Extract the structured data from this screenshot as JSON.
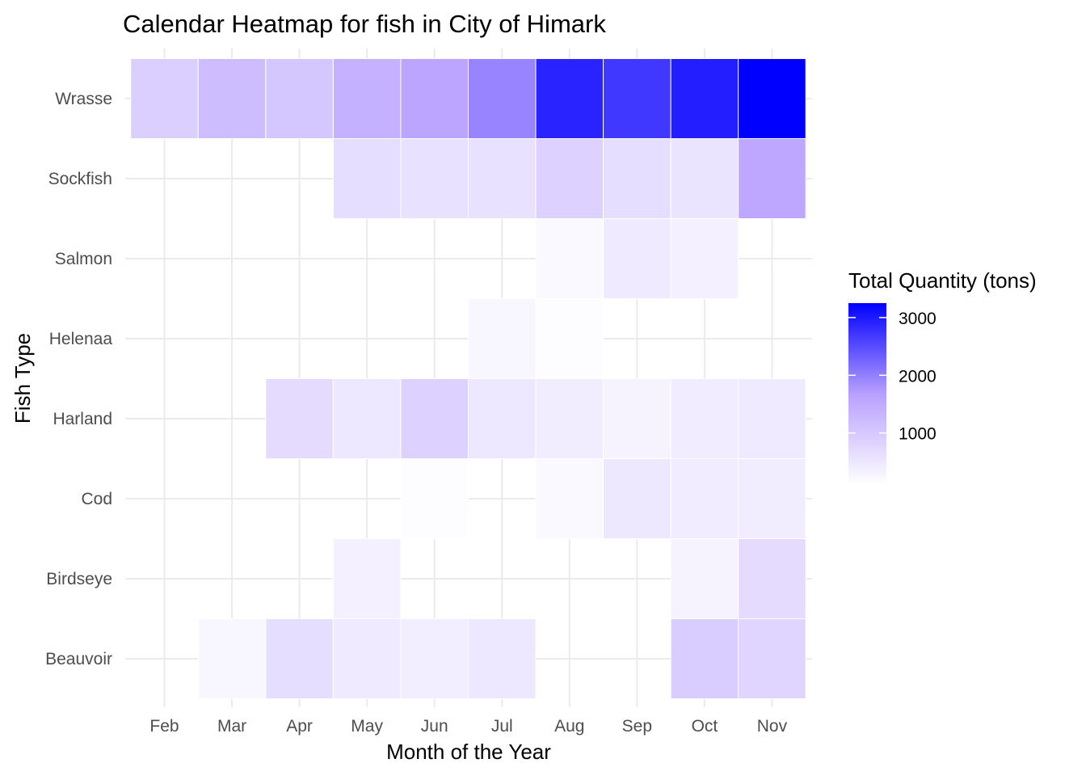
{
  "chart_data": {
    "type": "heatmap",
    "title": "Calendar Heatmap for fish in City of Himark",
    "xlabel": "Month of the Year",
    "ylabel": "Fish Type",
    "x_categories": [
      "Feb",
      "Mar",
      "Apr",
      "May",
      "Jun",
      "Jul",
      "Aug",
      "Sep",
      "Oct",
      "Nov"
    ],
    "y_categories": [
      "Beauvoir",
      "Birdseye",
      "Cod",
      "Harland",
      "Helenaa",
      "Salmon",
      "Sockfish",
      "Wrasse"
    ],
    "grid": true,
    "colors": {
      "low": "#ffffff",
      "high": "#0000ff"
    },
    "legend": {
      "title": "Total Quantity (tons)",
      "position": "right",
      "min": 100,
      "max": 3250,
      "breaks": [
        1000,
        2000,
        3000
      ],
      "labels": [
        "1000",
        "2000",
        "3000"
      ]
    },
    "cells": [
      {
        "fish": "Wrasse",
        "month": "Feb",
        "value": 900
      },
      {
        "fish": "Wrasse",
        "month": "Mar",
        "value": 1200
      },
      {
        "fish": "Wrasse",
        "month": "Apr",
        "value": 1050
      },
      {
        "fish": "Wrasse",
        "month": "May",
        "value": 1400
      },
      {
        "fish": "Wrasse",
        "month": "Jun",
        "value": 1600
      },
      {
        "fish": "Wrasse",
        "month": "Jul",
        "value": 1950
      },
      {
        "fish": "Wrasse",
        "month": "Aug",
        "value": 2900
      },
      {
        "fish": "Wrasse",
        "month": "Sep",
        "value": 2700
      },
      {
        "fish": "Wrasse",
        "month": "Oct",
        "value": 2950
      },
      {
        "fish": "Wrasse",
        "month": "Nov",
        "value": 3250
      },
      {
        "fish": "Sockfish",
        "month": "May",
        "value": 650
      },
      {
        "fish": "Sockfish",
        "month": "Jun",
        "value": 600
      },
      {
        "fish": "Sockfish",
        "month": "Jul",
        "value": 600
      },
      {
        "fish": "Sockfish",
        "month": "Aug",
        "value": 850
      },
      {
        "fish": "Sockfish",
        "month": "Sep",
        "value": 650
      },
      {
        "fish": "Sockfish",
        "month": "Oct",
        "value": 550
      },
      {
        "fish": "Sockfish",
        "month": "Nov",
        "value": 1550
      },
      {
        "fish": "Salmon",
        "month": "Aug",
        "value": 200
      },
      {
        "fish": "Salmon",
        "month": "Sep",
        "value": 450
      },
      {
        "fish": "Salmon",
        "month": "Oct",
        "value": 350
      },
      {
        "fish": "Helenaa",
        "month": "Jul",
        "value": 250
      },
      {
        "fish": "Helenaa",
        "month": "Aug",
        "value": 150
      },
      {
        "fish": "Harland",
        "month": "Apr",
        "value": 700
      },
      {
        "fish": "Harland",
        "month": "May",
        "value": 500
      },
      {
        "fish": "Harland",
        "month": "Jun",
        "value": 850
      },
      {
        "fish": "Harland",
        "month": "Jul",
        "value": 500
      },
      {
        "fish": "Harland",
        "month": "Aug",
        "value": 400
      },
      {
        "fish": "Harland",
        "month": "Sep",
        "value": 300
      },
      {
        "fish": "Harland",
        "month": "Oct",
        "value": 420
      },
      {
        "fish": "Harland",
        "month": "Nov",
        "value": 450
      },
      {
        "fish": "Cod",
        "month": "Jun",
        "value": 150
      },
      {
        "fish": "Cod",
        "month": "Aug",
        "value": 200
      },
      {
        "fish": "Cod",
        "month": "Sep",
        "value": 480
      },
      {
        "fish": "Cod",
        "month": "Oct",
        "value": 420
      },
      {
        "fish": "Cod",
        "month": "Nov",
        "value": 400
      },
      {
        "fish": "Birdseye",
        "month": "May",
        "value": 350
      },
      {
        "fish": "Birdseye",
        "month": "Oct",
        "value": 300
      },
      {
        "fish": "Birdseye",
        "month": "Nov",
        "value": 700
      },
      {
        "fish": "Beauvoir",
        "month": "Mar",
        "value": 250
      },
      {
        "fish": "Beauvoir",
        "month": "Apr",
        "value": 650
      },
      {
        "fish": "Beauvoir",
        "month": "May",
        "value": 450
      },
      {
        "fish": "Beauvoir",
        "month": "Jun",
        "value": 380
      },
      {
        "fish": "Beauvoir",
        "month": "Jul",
        "value": 500
      },
      {
        "fish": "Beauvoir",
        "month": "Oct",
        "value": 950
      },
      {
        "fish": "Beauvoir",
        "month": "Nov",
        "value": 800
      }
    ]
  }
}
